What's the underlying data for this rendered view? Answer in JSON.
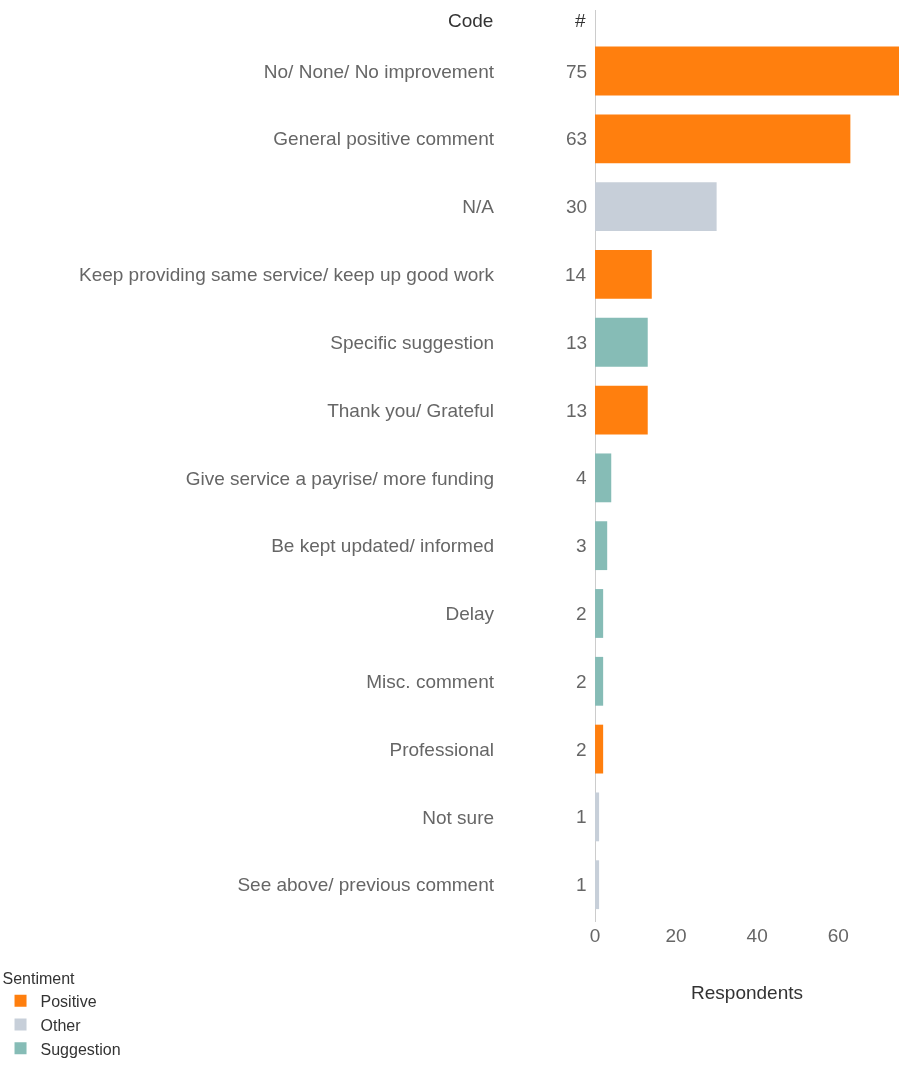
{
  "chart_data": {
    "type": "bar",
    "orientation": "horizontal",
    "xlabel": "Respondents",
    "legend_title": "Sentiment",
    "legend": "bottom left",
    "data_labels": true,
    "annotations": [
      "Code",
      "#"
    ],
    "categories": [
      "No/ None/ No improvement",
      "General positive comment",
      "N/A",
      "Keep providing same service/ keep up good work",
      "Specific suggestion",
      "Thank you/ Grateful",
      "Give service a payrise/ more funding",
      "Be kept updated/ informed",
      "Delay",
      "Misc. comment",
      "Professional",
      "Not sure",
      "See above/ previous comment"
    ],
    "series": [
      {
        "name": "Positive",
        "color": "#ff7f0e",
        "values": [
          75,
          63,
          null,
          14,
          null,
          13,
          null,
          null,
          null,
          null,
          2,
          null,
          null
        ]
      },
      {
        "name": "Other",
        "color": "#c7cfd9",
        "values": [
          null,
          null,
          30,
          null,
          null,
          null,
          null,
          null,
          null,
          null,
          null,
          1,
          1
        ]
      },
      {
        "name": "Suggestion",
        "color": "#86bcb6",
        "values": [
          null,
          null,
          null,
          null,
          13,
          null,
          4,
          3,
          2,
          2,
          null,
          null,
          null
        ]
      }
    ],
    "xlim": [
      0,
      75
    ],
    "xticks": [
      0,
      20,
      40,
      60
    ]
  }
}
